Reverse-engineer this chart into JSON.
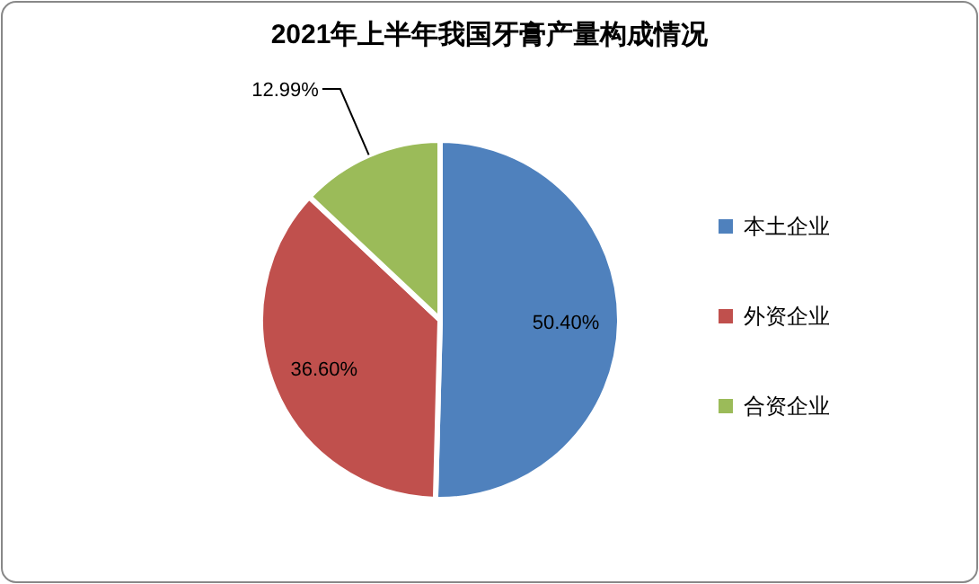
{
  "chart_data": {
    "type": "pie",
    "title": "2021年上半年我国牙膏产量构成情况",
    "categories": [
      "本土企业",
      "外资企业",
      "合资企业"
    ],
    "values": [
      50.4,
      36.6,
      12.99
    ],
    "colors": [
      "#4f81bd",
      "#c0504d",
      "#9bbb59"
    ],
    "value_labels": [
      "50.40%",
      "36.60%",
      "12.99%"
    ],
    "legend": "right"
  }
}
